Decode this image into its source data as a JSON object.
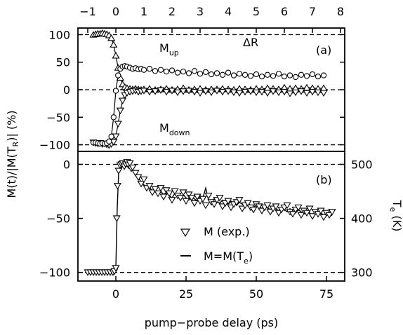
{
  "chart_data": [
    {
      "panel": "a",
      "type": "scatter",
      "panel_label": "(a)",
      "x_top_label": "",
      "x_top_ticks": [
        "−1",
        "0",
        "1",
        "2",
        "3",
        "4",
        "5",
        "6",
        "7",
        "8"
      ],
      "x_top_values": [
        -1,
        0,
        1,
        2,
        3,
        4,
        5,
        6,
        7,
        8
      ],
      "xlim_top": [
        -1.35,
        8.15
      ],
      "ylim": [
        -112,
        112
      ],
      "y_ticks": [
        100,
        50,
        0,
        -50,
        -100
      ],
      "y_tick_labels": [
        "100",
        "50",
        "0",
        "−50",
        "−100"
      ],
      "dashed_lines": [
        100,
        0,
        -100
      ],
      "annotations": [
        {
          "main": "M",
          "sub": "up",
          "x": 0.15,
          "y": 62
        },
        {
          "main": "ΔR",
          "sub": "",
          "x": 2.5,
          "y": 70
        },
        {
          "main": "M",
          "sub": "down",
          "x": 0.15,
          "y": -78
        }
      ],
      "series": [
        {
          "name": "M_up",
          "marker": "triangle-up",
          "x": [
            -0.8,
            -0.72,
            -0.64,
            -0.56,
            -0.48,
            -0.4,
            -0.32,
            -0.24,
            -0.16,
            -0.08,
            0.0,
            0.08,
            0.16,
            0.24,
            0.32,
            0.4,
            0.5,
            0.6,
            0.7,
            0.8,
            0.9,
            1.0,
            1.2,
            1.4,
            1.6,
            1.8,
            2.0,
            2.2,
            2.4,
            2.6,
            2.8,
            3.0,
            3.2,
            3.4,
            3.6,
            3.8,
            4.0,
            4.2,
            4.4,
            4.6,
            4.8,
            5.0,
            5.2,
            5.4,
            5.6,
            5.8,
            6.0,
            6.2,
            6.4,
            6.6,
            6.8,
            7.0,
            7.2,
            7.4
          ],
          "y": [
            100,
            101,
            102,
            102,
            103,
            102,
            101,
            99,
            94,
            82,
            62,
            40,
            22,
            10,
            5,
            3,
            2,
            1,
            2,
            1,
            0,
            1,
            2,
            0,
            1,
            2,
            0,
            1,
            3,
            0,
            1,
            2,
            0,
            1,
            1,
            2,
            1,
            0,
            2,
            1,
            0,
            2,
            1,
            3,
            2,
            1,
            4,
            2,
            3,
            2,
            4,
            3,
            2,
            3
          ]
        },
        {
          "name": "M_down",
          "marker": "triangle-down",
          "x": [
            -0.8,
            -0.72,
            -0.64,
            -0.56,
            -0.48,
            -0.4,
            -0.32,
            -0.24,
            -0.16,
            -0.08,
            0.0,
            0.08,
            0.16,
            0.24,
            0.32,
            0.4,
            0.5,
            0.6,
            0.7,
            0.8,
            0.9,
            1.0,
            1.2,
            1.4,
            1.6,
            1.8,
            2.0,
            2.2,
            2.4,
            2.6,
            2.8,
            3.0,
            3.2,
            3.4,
            3.6,
            3.8,
            4.0,
            4.2,
            4.4,
            4.6,
            4.8,
            5.0,
            5.2,
            5.4,
            5.6,
            5.8,
            6.0,
            6.2,
            6.4,
            6.6,
            6.8,
            7.0,
            7.2,
            7.4
          ],
          "y": [
            -96,
            -97,
            -98,
            -97,
            -99,
            -98,
            -100,
            -101,
            -99,
            -95,
            -85,
            -62,
            -38,
            -20,
            -10,
            -6,
            -4,
            -3,
            -2,
            -4,
            -3,
            -2,
            -4,
            -3,
            -1,
            -4,
            -2,
            -5,
            -3,
            -2,
            -4,
            -6,
            -3,
            -5,
            -2,
            -4,
            -3,
            -5,
            -6,
            -4,
            -3,
            -5,
            -4,
            -6,
            -3,
            -5,
            -4,
            -7,
            -5,
            -3,
            -6,
            -4,
            -5,
            -6
          ]
        },
        {
          "name": "ΔR",
          "marker": "circle",
          "x": [
            -0.8,
            -0.72,
            -0.64,
            -0.56,
            -0.48,
            -0.4,
            -0.32,
            -0.24,
            -0.16,
            -0.08,
            0.0,
            0.08,
            0.16,
            0.24,
            0.32,
            0.4,
            0.5,
            0.6,
            0.7,
            0.8,
            0.9,
            1.0,
            1.2,
            1.4,
            1.6,
            1.8,
            2.0,
            2.2,
            2.4,
            2.6,
            2.8,
            3.0,
            3.2,
            3.4,
            3.6,
            3.8,
            4.0,
            4.2,
            4.4,
            4.6,
            4.8,
            5.0,
            5.2,
            5.4,
            5.6,
            5.8,
            6.0,
            6.2,
            6.4,
            6.6,
            6.8,
            7.0,
            7.2,
            7.4
          ],
          "y": [
            -96,
            -96,
            -97,
            -98,
            -97,
            -98,
            -97,
            -94,
            -85,
            -50,
            -2,
            26,
            38,
            42,
            43,
            42,
            40,
            38,
            39,
            37,
            38,
            36,
            38,
            34,
            36,
            33,
            35,
            31,
            33,
            30,
            34,
            29,
            32,
            28,
            30,
            27,
            31,
            26,
            29,
            27,
            25,
            28,
            24,
            27,
            25,
            29,
            24,
            26,
            23,
            27,
            25,
            28,
            24,
            26
          ]
        }
      ]
    },
    {
      "panel": "b",
      "type": "scatter",
      "panel_label": "(b)",
      "xlabel": "pump−probe delay (ps)",
      "x_ticks": [
        "0",
        "25",
        "50",
        "75"
      ],
      "x_values": [
        0,
        25,
        50,
        75
      ],
      "xlim": [
        -13.5,
        81.5
      ],
      "ylim": [
        -108,
        12
      ],
      "y_ticks": [
        0,
        -50,
        -100
      ],
      "y_tick_labels": [
        "0",
        "−50",
        "−100"
      ],
      "y2_title_main": "T",
      "y2_title_sub": "e",
      "y2_title_unit": " (K)",
      "y2_ticks": [
        500,
        400,
        300
      ],
      "y2_tick_labels": [
        "500",
        "400",
        "300"
      ],
      "y2_lim": [
        284,
        524
      ],
      "dashed_lines": [
        0,
        -100
      ],
      "legend": [
        {
          "marker": "triangle-down",
          "label": "M (exp.)"
        },
        {
          "marker": "line",
          "label_main": "M=M(T",
          "label_sub": "e",
          "label_end": ")"
        }
      ],
      "series": [
        {
          "name": "M (exp.)",
          "marker": "triangle-down",
          "x": [
            -10,
            -9,
            -8,
            -7,
            -6,
            -5,
            -4,
            -3,
            -2,
            -1,
            -0.5,
            0,
            0.3,
            0.6,
            1,
            1.5,
            2,
            2.5,
            3,
            3.5,
            4,
            4.5,
            5,
            5.5,
            6,
            7,
            8,
            9,
            10,
            11,
            12,
            13,
            14,
            15,
            16,
            17,
            18,
            19,
            20,
            21,
            22,
            23,
            24,
            25,
            26,
            27,
            28,
            29,
            30,
            31,
            32,
            33,
            34,
            35,
            36,
            37,
            38,
            39,
            40,
            41,
            42,
            43,
            44,
            45,
            46,
            47,
            48,
            49,
            50,
            51,
            52,
            53,
            54,
            55,
            56,
            57,
            58,
            59,
            60,
            61,
            62,
            63,
            64,
            65,
            66,
            67,
            68,
            69,
            70,
            71,
            72,
            73,
            74,
            75,
            76,
            77
          ],
          "y": [
            -100,
            -100,
            -100,
            -100,
            -100,
            -100,
            -100,
            -100,
            -100,
            -100,
            -99,
            -96,
            -50,
            -20,
            -6,
            -1,
            0,
            1,
            -2,
            0,
            2,
            -1,
            1,
            -4,
            -3,
            -8,
            -12,
            -18,
            -14,
            -22,
            -20,
            -26,
            -23,
            -27,
            -22,
            -30,
            -24,
            -27,
            -33,
            -25,
            -29,
            -31,
            -26,
            -34,
            -28,
            -31,
            -36,
            -30,
            -34,
            -32,
            -38,
            -29,
            -35,
            -37,
            -33,
            -31,
            -39,
            -36,
            -34,
            -40,
            -37,
            -35,
            -33,
            -41,
            -38,
            -36,
            -40,
            -42,
            -37,
            -39,
            -43,
            -40,
            -38,
            -44,
            -41,
            -39,
            -45,
            -42,
            -40,
            -38,
            -44,
            -46,
            -42,
            -40,
            -47,
            -43,
            -45,
            -41,
            -48,
            -44,
            -46,
            -43,
            -49,
            -45,
            -47,
            -44
          ]
        },
        {
          "name": "M=M(Te)",
          "marker": "line",
          "x": [
            -10,
            -6,
            -3,
            -1,
            -0.5,
            0,
            0.5,
            1,
            2,
            3,
            4,
            5,
            6,
            7,
            8,
            9,
            10,
            11,
            12,
            13,
            14,
            15,
            16,
            17,
            18,
            19,
            20,
            21,
            22,
            23,
            24,
            25,
            26,
            27,
            28,
            29,
            30,
            31,
            32,
            33,
            34,
            35,
            36,
            37,
            38,
            39,
            40,
            41,
            42,
            43,
            44,
            45,
            46,
            47,
            48,
            49,
            50,
            51,
            52,
            53,
            54,
            55,
            56,
            57,
            58,
            59,
            60,
            61,
            62,
            63,
            64,
            65,
            66,
            67,
            68,
            69,
            70,
            71,
            72,
            73,
            74,
            75,
            76,
            77
          ],
          "y": [
            -100,
            -100,
            -100,
            -100,
            -98,
            -95,
            -40,
            -8,
            -3,
            0,
            -2,
            -1,
            -5,
            -9,
            -13,
            -16,
            -19,
            -22,
            -21,
            -25,
            -24,
            -27,
            -25,
            -28,
            -26,
            -29,
            -31,
            -27,
            -29,
            -32,
            -28,
            -31,
            -33,
            -30,
            -32,
            -34,
            -29,
            -31,
            -22,
            -33,
            -35,
            -32,
            -34,
            -36,
            -33,
            -35,
            -37,
            -34,
            -36,
            -38,
            -35,
            -37,
            -39,
            -36,
            -38,
            -40,
            -37,
            -39,
            -41,
            -38,
            -40,
            -42,
            -39,
            -41,
            -43,
            -40,
            -42,
            -44,
            -41,
            -43,
            -45,
            -42,
            -44,
            -46,
            -43,
            -45,
            -47,
            -44,
            -46,
            -45,
            -47,
            -46,
            -48,
            -47
          ]
        }
      ]
    }
  ],
  "shared": {
    "ylabel_prefix": "M(t)/|M(T",
    "ylabel_sub": "R",
    "ylabel_suffix": ")| (%)"
  }
}
